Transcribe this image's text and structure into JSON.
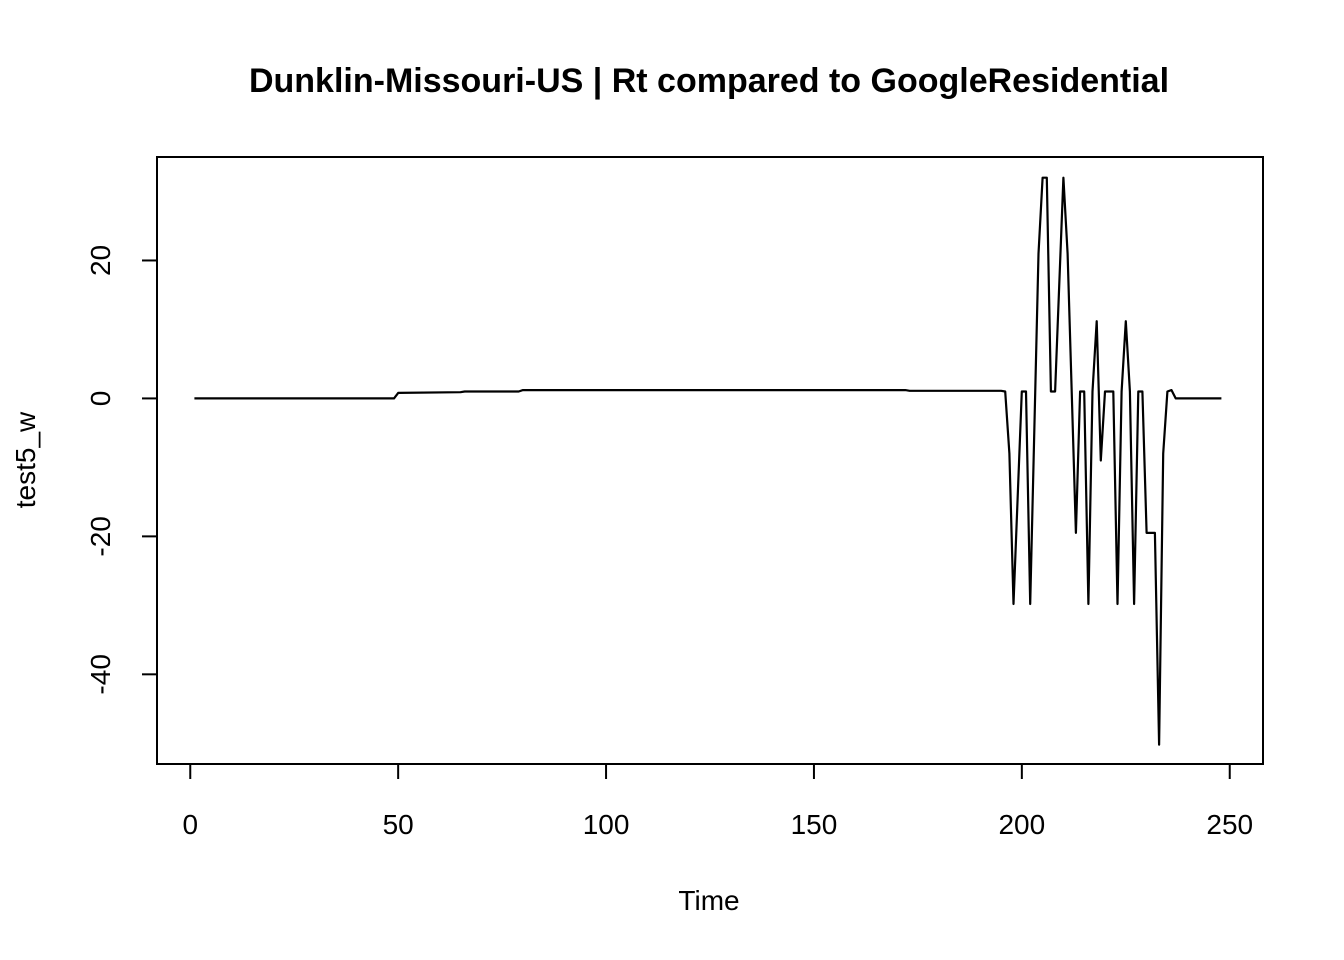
{
  "chart_data": {
    "type": "line",
    "title": "Dunklin-Missouri-US | Rt compared to GoogleResidential",
    "xlabel": "Time",
    "ylabel": "test5_w",
    "xlim": [
      -8,
      258
    ],
    "ylim": [
      -53,
      35
    ],
    "xticks": [
      0,
      50,
      100,
      150,
      200,
      250
    ],
    "yticks": [
      -40,
      -20,
      0,
      20
    ],
    "grid": false,
    "series": [
      {
        "name": "",
        "color": "#000000",
        "points": [
          [
            1,
            0
          ],
          [
            49,
            0
          ],
          [
            50,
            0.8
          ],
          [
            65,
            0.9
          ],
          [
            66,
            1.0
          ],
          [
            79,
            1.0
          ],
          [
            80,
            1.2
          ],
          [
            172,
            1.2
          ],
          [
            173,
            1.1
          ],
          [
            195,
            1.1
          ],
          [
            196,
            1.0
          ],
          [
            197,
            -8
          ],
          [
            198,
            -29.8
          ],
          [
            200,
            1.0
          ],
          [
            201,
            1.0
          ],
          [
            202,
            -29.8
          ],
          [
            204,
            21
          ],
          [
            205,
            32
          ],
          [
            206,
            32
          ],
          [
            207,
            1.0
          ],
          [
            208,
            1.0
          ],
          [
            210,
            32
          ],
          [
            211,
            21
          ],
          [
            212,
            1.0
          ],
          [
            213,
            -19.5
          ],
          [
            214,
            1.0
          ],
          [
            215,
            1.0
          ],
          [
            216,
            -29.8
          ],
          [
            217,
            1.0
          ],
          [
            218,
            11.2
          ],
          [
            219,
            -9
          ],
          [
            220,
            1.0
          ],
          [
            222,
            1.0
          ],
          [
            223,
            -29.8
          ],
          [
            224,
            1.0
          ],
          [
            225,
            11.2
          ],
          [
            226,
            1.0
          ],
          [
            227,
            -29.8
          ],
          [
            228,
            1.0
          ],
          [
            229,
            1.0
          ],
          [
            230,
            -19.5
          ],
          [
            231,
            -19.5
          ],
          [
            232,
            -19.5
          ],
          [
            233,
            -50.2
          ],
          [
            234,
            -8
          ],
          [
            235,
            1.0
          ],
          [
            236,
            1.2
          ],
          [
            237,
            0
          ],
          [
            248,
            0
          ]
        ]
      }
    ]
  }
}
